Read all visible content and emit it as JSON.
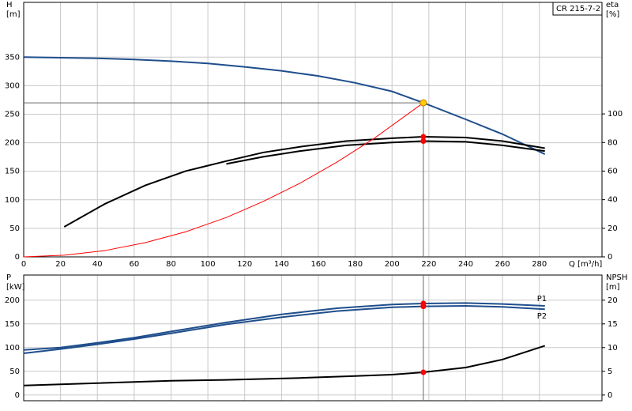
{
  "chart_data": [
    {
      "type": "line",
      "name": "CR 215-7-2",
      "x_label": "Q [m³/h]",
      "y_label": [
        "H",
        "[m]"
      ],
      "y2_label": [
        "eta",
        "[%]"
      ],
      "xlim": [
        0,
        314
      ],
      "xticks": [
        0,
        20,
        40,
        60,
        80,
        100,
        120,
        140,
        160,
        180,
        200,
        220,
        240,
        260,
        280
      ],
      "ylim": [
        0,
        446
      ],
      "yticks": [
        0,
        50,
        100,
        150,
        200,
        250,
        300,
        350
      ],
      "y2lim": [
        0,
        178
      ],
      "y2ticks": [
        0,
        20,
        40,
        60,
        80,
        100
      ],
      "grid": true,
      "operating_point": {
        "x": 217,
        "y": 270,
        "color": "#ffcc00"
      },
      "series": [
        {
          "color": "#1f4e8c",
          "x": [
            0,
            20,
            40,
            60,
            80,
            100,
            120,
            140,
            160,
            180,
            200,
            217,
            240,
            260,
            283
          ],
          "values": [
            350,
            349,
            348,
            346,
            343,
            339,
            333,
            326,
            317,
            305,
            290,
            270,
            241,
            215,
            180
          ]
        },
        {
          "color": "#000000",
          "axis": "y2",
          "marker_color": "#ff0000",
          "x": [
            22,
            44,
            66,
            88,
            110,
            130,
            150,
            175,
            200,
            217,
            240,
            260,
            283
          ],
          "values": [
            21,
            37,
            50,
            60,
            67,
            73,
            77,
            81,
            83,
            84,
            83.5,
            81,
            76
          ]
        },
        {
          "color": "#000000",
          "axis": "y2",
          "marker_color": "#ff0000",
          "x": [
            110,
            130,
            150,
            175,
            200,
            217,
            240,
            260,
            283
          ],
          "values": [
            65,
            70,
            74,
            78,
            80,
            81,
            80.5,
            78,
            74
          ]
        },
        {
          "color": "#ff0000",
          "width": 1,
          "x": [
            0,
            22,
            44,
            66,
            88,
            110,
            130,
            150,
            170,
            190,
            217
          ],
          "values": [
            0,
            3,
            11,
            25,
            44,
            69,
            97,
            129,
            166,
            207,
            270
          ]
        }
      ]
    },
    {
      "type": "line",
      "y_label": [
        "P",
        "[kW]"
      ],
      "y2_label": [
        "NPSH",
        "[m]"
      ],
      "xlim": [
        0,
        314
      ],
      "xticks": [
        0,
        20,
        40,
        60,
        80,
        100,
        120,
        140,
        160,
        180,
        200,
        220,
        240,
        260,
        280
      ],
      "ylim": [
        -12,
        253
      ],
      "yticks": [
        0,
        50,
        100,
        150,
        200
      ],
      "y2lim": [
        -1.2,
        25.3
      ],
      "y2ticks": [
        0,
        5,
        10,
        15,
        20
      ],
      "grid": true,
      "operating_x": 217,
      "series": [
        {
          "name": "P1",
          "color": "#1f4e8c",
          "marker_color": "#ff0000",
          "x": [
            0,
            20,
            40,
            60,
            80,
            110,
            140,
            170,
            200,
            217,
            240,
            260,
            283
          ],
          "values": [
            95,
            100,
            110,
            121,
            134,
            153,
            170,
            183,
            191,
            193,
            194,
            192,
            188
          ]
        },
        {
          "name": "P2",
          "color": "#1f4e8c",
          "marker_color": "#ff0000",
          "x": [
            0,
            20,
            40,
            60,
            80,
            110,
            140,
            170,
            200,
            217,
            240,
            260,
            283
          ],
          "values": [
            88,
            97,
            107,
            118,
            130,
            149,
            164,
            177,
            185,
            187,
            188,
            186,
            181
          ]
        },
        {
          "color": "#000000",
          "axis": "y2",
          "marker_color": "#ff0000",
          "x": [
            0,
            40,
            80,
            110,
            150,
            180,
            200,
            217,
            240,
            260,
            283
          ],
          "values": [
            2,
            2.5,
            3,
            3.2,
            3.6,
            4,
            4.3,
            4.8,
            5.8,
            7.5,
            10.4
          ]
        }
      ]
    }
  ]
}
